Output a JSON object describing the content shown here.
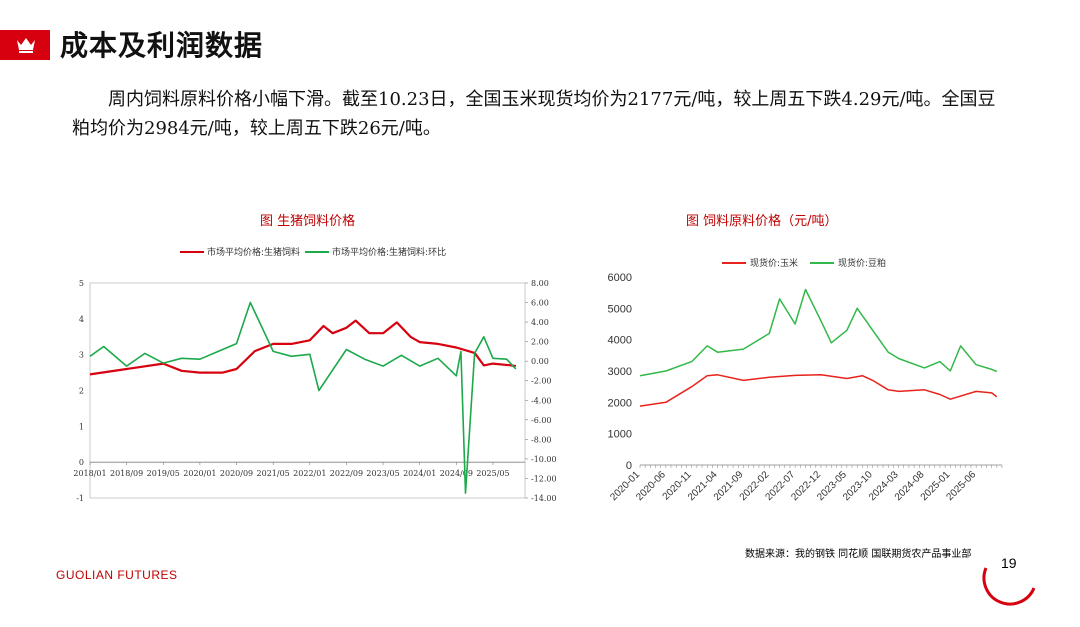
{
  "header": {
    "title": "成本及利润数据",
    "icon": "crown-icon"
  },
  "body": {
    "text": "周内饲料原料价格小幅下滑。截至10.23日，全国玉米现货均价为2177元/吨，较上周五下跌4.29元/吨。全国豆粕均价为2984元/吨，较上周五下跌26元/吨。"
  },
  "chart_data": [
    {
      "type": "line",
      "title": "图 生猪饲料价格",
      "legend": [
        "市场平均价格:生猪饲料",
        "市场平均价格:生猪饲料:环比"
      ],
      "legend_position": "top",
      "x_ticks": [
        "2018/01",
        "2018/09",
        "2019/05",
        "2020/01",
        "2020/09",
        "2021/05",
        "2022/01",
        "2022/09",
        "2023/05",
        "2024/01",
        "2024/09",
        "2025/05"
      ],
      "y_left_ticks": [
        "5",
        "4",
        "3",
        "2",
        "1",
        "0",
        "-1"
      ],
      "y_left_range": [
        -1,
        5
      ],
      "y_right_ticks": [
        "8.00",
        "6.00",
        "4.00",
        "2.00",
        "0.00",
        "-2.00",
        "-4.00",
        "-6.00",
        "-8.00",
        "-10.00",
        "-12.00",
        "-14.00"
      ],
      "y_right_range": [
        -14,
        8
      ],
      "series": [
        {
          "name": "市场平均价格:生猪饲料",
          "color": "#d7000f",
          "axis": "left",
          "x": [
            "2018/01",
            "2018/09",
            "2019/05",
            "2019/09",
            "2020/01",
            "2020/06",
            "2020/09",
            "2021/01",
            "2021/05",
            "2021/09",
            "2022/01",
            "2022/04",
            "2022/06",
            "2022/09",
            "2022/11",
            "2023/02",
            "2023/05",
            "2023/08",
            "2023/11",
            "2024/01",
            "2024/05",
            "2024/09",
            "2025/01",
            "2025/03",
            "2025/05",
            "2025/09",
            "2025/10"
          ],
          "y": [
            2.45,
            2.6,
            2.75,
            2.55,
            2.5,
            2.5,
            2.6,
            3.1,
            3.3,
            3.3,
            3.4,
            3.8,
            3.6,
            3.75,
            3.95,
            3.6,
            3.6,
            3.9,
            3.5,
            3.35,
            3.3,
            3.2,
            3.05,
            2.7,
            2.75,
            2.7,
            2.68
          ]
        },
        {
          "name": "市场平均价格:生猪饲料:环比",
          "color": "#1ca94a",
          "axis": "right",
          "x": [
            "2018/01",
            "2018/04",
            "2018/09",
            "2019/01",
            "2019/05",
            "2019/09",
            "2020/01",
            "2020/05",
            "2020/09",
            "2020/12",
            "2021/05",
            "2021/09",
            "2022/01",
            "2022/03",
            "2022/09",
            "2023/01",
            "2023/05",
            "2023/09",
            "2024/01",
            "2024/05",
            "2024/09",
            "2024/10",
            "2024/11",
            "2025/01",
            "2025/03",
            "2025/05",
            "2025/08",
            "2025/10"
          ],
          "y": [
            0.5,
            1.5,
            -0.5,
            0.8,
            -0.2,
            0.3,
            0.2,
            1.0,
            1.8,
            6.0,
            1.0,
            0.5,
            0.7,
            -3.0,
            1.2,
            0.2,
            -0.5,
            0.6,
            -0.5,
            0.3,
            -1.5,
            1.0,
            -13.5,
            0.8,
            2.5,
            0.3,
            0.2,
            -0.8
          ]
        }
      ]
    },
    {
      "type": "line",
      "title": "图    饲料原料价格（元/吨）",
      "legend": [
        "现货价:玉米",
        "现货价:豆粕"
      ],
      "legend_position": "top",
      "x_ticks": [
        "2020-01",
        "2020-06",
        "2020-11",
        "2021-04",
        "2021-09",
        "2022-02",
        "2022-07",
        "2022-12",
        "2023-05",
        "2023-10",
        "2024-03",
        "2024-08",
        "2025-01",
        "2025-06"
      ],
      "y_ticks": [
        "6000",
        "5000",
        "4000",
        "3000",
        "2000",
        "1000",
        "0"
      ],
      "ylim": [
        0,
        6000
      ],
      "series": [
        {
          "name": "现货价:玉米",
          "color": "#e8231b",
          "x": [
            "2020-01",
            "2020-06",
            "2020-11",
            "2021-02",
            "2021-04",
            "2021-09",
            "2022-02",
            "2022-07",
            "2022-12",
            "2023-05",
            "2023-08",
            "2023-10",
            "2024-01",
            "2024-03",
            "2024-08",
            "2024-11",
            "2025-01",
            "2025-06",
            "2025-09",
            "2025-10"
          ],
          "y": [
            1880,
            2000,
            2500,
            2850,
            2880,
            2700,
            2800,
            2860,
            2880,
            2760,
            2850,
            2700,
            2400,
            2350,
            2400,
            2250,
            2100,
            2350,
            2300,
            2177
          ]
        },
        {
          "name": "现货价:豆粕",
          "color": "#33b849",
          "x": [
            "2020-01",
            "2020-06",
            "2020-11",
            "2021-02",
            "2021-04",
            "2021-09",
            "2022-02",
            "2022-04",
            "2022-07",
            "2022-09",
            "2022-12",
            "2023-02",
            "2023-05",
            "2023-07",
            "2023-10",
            "2024-01",
            "2024-03",
            "2024-08",
            "2024-11",
            "2025-01",
            "2025-03",
            "2025-06",
            "2025-09",
            "2025-10"
          ],
          "y": [
            2850,
            3000,
            3300,
            3800,
            3600,
            3700,
            4200,
            5300,
            4500,
            5600,
            4600,
            3900,
            4300,
            5000,
            4300,
            3600,
            3400,
            3100,
            3300,
            3000,
            3800,
            3200,
            3050,
            2984
          ]
        }
      ]
    }
  ],
  "footer": {
    "source": "数据来源：我的钢铁  同花顺  国联期货农产品事业部",
    "brand": "GUOLIAN FUTURES",
    "page": "19"
  },
  "colors": {
    "accent": "#d7000f"
  }
}
